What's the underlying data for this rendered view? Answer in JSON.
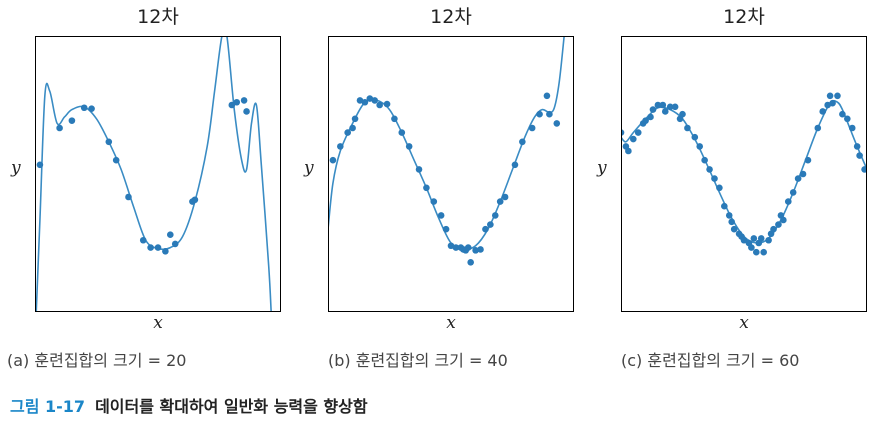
{
  "figure_caption": {
    "number": "그림 1-17",
    "text": "데이터를 확대하여 일반화 능력을 향상함"
  },
  "colors": {
    "series": "#2a7ab8",
    "curve": "#3a8cc4",
    "frame": "#000000"
  },
  "chart_data": [
    {
      "type": "scatter",
      "title": "12차",
      "xlabel": "x",
      "ylabel": "y",
      "caption": "(a) 훈련집합의 크기 = 20",
      "xlim": [
        0,
        1
      ],
      "ylim": [
        -1.5,
        1.5
      ],
      "points": [
        [
          0.02,
          0.1
        ],
        [
          0.1,
          0.5
        ],
        [
          0.15,
          0.58
        ],
        [
          0.2,
          0.72
        ],
        [
          0.23,
          0.71
        ],
        [
          0.3,
          0.35
        ],
        [
          0.33,
          0.15
        ],
        [
          0.38,
          -0.25
        ],
        [
          0.44,
          -0.72
        ],
        [
          0.47,
          -0.8
        ],
        [
          0.5,
          -0.8
        ],
        [
          0.53,
          -0.84
        ],
        [
          0.55,
          -0.66
        ],
        [
          0.57,
          -0.76
        ],
        [
          0.64,
          -0.3
        ],
        [
          0.65,
          -0.28
        ],
        [
          0.8,
          0.75
        ],
        [
          0.82,
          0.78
        ],
        [
          0.85,
          0.8
        ],
        [
          0.86,
          0.68
        ]
      ],
      "curve": [
        [
          0.005,
          -1.5
        ],
        [
          0.02,
          -0.5
        ],
        [
          0.04,
          0.85
        ],
        [
          0.06,
          0.9
        ],
        [
          0.09,
          0.55
        ],
        [
          0.12,
          0.62
        ],
        [
          0.15,
          0.7
        ],
        [
          0.2,
          0.73
        ],
        [
          0.25,
          0.6
        ],
        [
          0.3,
          0.35
        ],
        [
          0.35,
          0.05
        ],
        [
          0.4,
          -0.35
        ],
        [
          0.45,
          -0.72
        ],
        [
          0.5,
          -0.81
        ],
        [
          0.55,
          -0.8
        ],
        [
          0.6,
          -0.68
        ],
        [
          0.65,
          -0.3
        ],
        [
          0.7,
          0.3
        ],
        [
          0.73,
          0.9
        ],
        [
          0.76,
          1.5
        ],
        [
          0.78,
          1.5
        ],
        [
          0.81,
          0.7
        ],
        [
          0.84,
          0.15
        ],
        [
          0.86,
          0.05
        ],
        [
          0.88,
          0.55
        ],
        [
          0.9,
          0.75
        ],
        [
          0.92,
          0.1
        ],
        [
          0.95,
          -1.0
        ],
        [
          0.96,
          -1.5
        ]
      ]
    },
    {
      "type": "scatter",
      "title": "12차",
      "xlabel": "x",
      "ylabel": "y",
      "caption": "(b) 훈련집합의 크기 = 40",
      "xlim": [
        0,
        1
      ],
      "ylim": [
        -1.5,
        1.5
      ],
      "points": [
        [
          0.02,
          0.15
        ],
        [
          0.05,
          0.3
        ],
        [
          0.08,
          0.45
        ],
        [
          0.1,
          0.5
        ],
        [
          0.11,
          0.6
        ],
        [
          0.13,
          0.8
        ],
        [
          0.15,
          0.78
        ],
        [
          0.17,
          0.82
        ],
        [
          0.19,
          0.8
        ],
        [
          0.21,
          0.75
        ],
        [
          0.24,
          0.76
        ],
        [
          0.27,
          0.6
        ],
        [
          0.3,
          0.45
        ],
        [
          0.33,
          0.3
        ],
        [
          0.37,
          0.05
        ],
        [
          0.4,
          -0.15
        ],
        [
          0.43,
          -0.3
        ],
        [
          0.46,
          -0.45
        ],
        [
          0.48,
          -0.6
        ],
        [
          0.5,
          -0.78
        ],
        [
          0.52,
          -0.8
        ],
        [
          0.54,
          -0.8
        ],
        [
          0.55,
          -0.82
        ],
        [
          0.56,
          -0.83
        ],
        [
          0.57,
          -0.8
        ],
        [
          0.58,
          -0.96
        ],
        [
          0.6,
          -0.83
        ],
        [
          0.62,
          -0.82
        ],
        [
          0.64,
          -0.6
        ],
        [
          0.66,
          -0.55
        ],
        [
          0.68,
          -0.45
        ],
        [
          0.7,
          -0.3
        ],
        [
          0.72,
          -0.25
        ],
        [
          0.76,
          0.1
        ],
        [
          0.79,
          0.35
        ],
        [
          0.83,
          0.5
        ],
        [
          0.86,
          0.65
        ],
        [
          0.89,
          0.85
        ],
        [
          0.9,
          0.65
        ],
        [
          0.93,
          0.55
        ]
      ],
      "curve": [
        [
          0.0,
          -0.6
        ],
        [
          0.02,
          -0.1
        ],
        [
          0.05,
          0.25
        ],
        [
          0.1,
          0.55
        ],
        [
          0.15,
          0.78
        ],
        [
          0.2,
          0.8
        ],
        [
          0.25,
          0.7
        ],
        [
          0.3,
          0.45
        ],
        [
          0.35,
          0.15
        ],
        [
          0.4,
          -0.15
        ],
        [
          0.45,
          -0.48
        ],
        [
          0.5,
          -0.75
        ],
        [
          0.55,
          -0.82
        ],
        [
          0.6,
          -0.78
        ],
        [
          0.65,
          -0.6
        ],
        [
          0.7,
          -0.3
        ],
        [
          0.75,
          0.05
        ],
        [
          0.8,
          0.4
        ],
        [
          0.84,
          0.62
        ],
        [
          0.87,
          0.7
        ],
        [
          0.9,
          0.67
        ],
        [
          0.92,
          0.72
        ],
        [
          0.94,
          1.0
        ],
        [
          0.96,
          1.5
        ]
      ]
    },
    {
      "type": "scatter",
      "title": "12차",
      "xlabel": "x",
      "ylabel": "y",
      "caption": "(c) 훈련집합의 크기 = 60",
      "xlim": [
        0,
        1
      ],
      "ylim": [
        -1.5,
        1.5
      ],
      "points": [
        [
          0.0,
          0.45
        ],
        [
          0.02,
          0.3
        ],
        [
          0.03,
          0.25
        ],
        [
          0.05,
          0.38
        ],
        [
          0.07,
          0.45
        ],
        [
          0.09,
          0.55
        ],
        [
          0.1,
          0.58
        ],
        [
          0.12,
          0.62
        ],
        [
          0.13,
          0.7
        ],
        [
          0.15,
          0.75
        ],
        [
          0.17,
          0.75
        ],
        [
          0.18,
          0.68
        ],
        [
          0.2,
          0.73
        ],
        [
          0.22,
          0.73
        ],
        [
          0.24,
          0.6
        ],
        [
          0.25,
          0.65
        ],
        [
          0.27,
          0.5
        ],
        [
          0.3,
          0.4
        ],
        [
          0.32,
          0.3
        ],
        [
          0.34,
          0.15
        ],
        [
          0.36,
          0.05
        ],
        [
          0.38,
          -0.05
        ],
        [
          0.4,
          -0.15
        ],
        [
          0.42,
          -0.35
        ],
        [
          0.44,
          -0.45
        ],
        [
          0.45,
          -0.52
        ],
        [
          0.46,
          -0.6
        ],
        [
          0.48,
          -0.65
        ],
        [
          0.49,
          -0.68
        ],
        [
          0.5,
          -0.72
        ],
        [
          0.52,
          -0.75
        ],
        [
          0.53,
          -0.8
        ],
        [
          0.54,
          -0.7
        ],
        [
          0.55,
          -0.85
        ],
        [
          0.56,
          -0.75
        ],
        [
          0.57,
          -0.7
        ],
        [
          0.58,
          -0.85
        ],
        [
          0.6,
          -0.72
        ],
        [
          0.61,
          -0.65
        ],
        [
          0.62,
          -0.6
        ],
        [
          0.64,
          -0.55
        ],
        [
          0.65,
          -0.45
        ],
        [
          0.66,
          -0.5
        ],
        [
          0.68,
          -0.3
        ],
        [
          0.7,
          -0.2
        ],
        [
          0.72,
          -0.05
        ],
        [
          0.74,
          0.0
        ],
        [
          0.76,
          0.15
        ],
        [
          0.8,
          0.5
        ],
        [
          0.82,
          0.68
        ],
        [
          0.84,
          0.75
        ],
        [
          0.85,
          0.85
        ],
        [
          0.86,
          0.77
        ],
        [
          0.88,
          0.85
        ],
        [
          0.9,
          0.65
        ],
        [
          0.92,
          0.6
        ],
        [
          0.94,
          0.5
        ],
        [
          0.96,
          0.3
        ],
        [
          0.97,
          0.2
        ],
        [
          0.99,
          0.05
        ]
      ],
      "curve": [
        [
          0.0,
          0.4
        ],
        [
          0.02,
          0.35
        ],
        [
          0.05,
          0.45
        ],
        [
          0.1,
          0.6
        ],
        [
          0.15,
          0.72
        ],
        [
          0.2,
          0.7
        ],
        [
          0.25,
          0.6
        ],
        [
          0.3,
          0.38
        ],
        [
          0.35,
          0.1
        ],
        [
          0.4,
          -0.2
        ],
        [
          0.45,
          -0.48
        ],
        [
          0.5,
          -0.68
        ],
        [
          0.55,
          -0.75
        ],
        [
          0.6,
          -0.7
        ],
        [
          0.65,
          -0.5
        ],
        [
          0.7,
          -0.2
        ],
        [
          0.75,
          0.15
        ],
        [
          0.8,
          0.5
        ],
        [
          0.85,
          0.77
        ],
        [
          0.88,
          0.78
        ],
        [
          0.9,
          0.7
        ],
        [
          0.93,
          0.5
        ],
        [
          0.96,
          0.3
        ],
        [
          1.0,
          0.05
        ]
      ]
    }
  ]
}
